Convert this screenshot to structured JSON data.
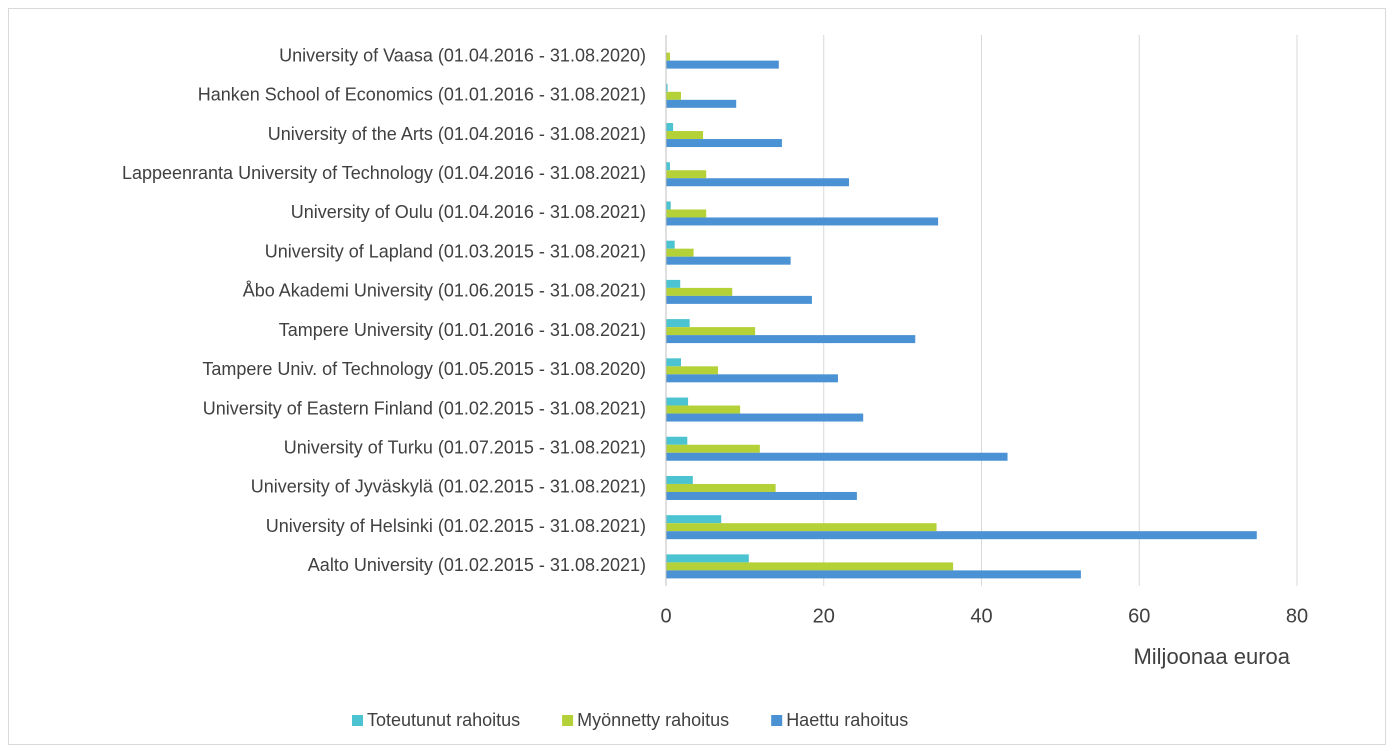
{
  "chart_data": {
    "type": "bar",
    "orientation": "horizontal",
    "x_label": "Miljoonaa euroa",
    "categories": [
      "University of Vaasa (01.04.2016 - 31.08.2020)",
      "Hanken School of Economics (01.01.2016 - 31.08.2021)",
      "University of the Arts (01.04.2016 - 31.08.2021)",
      "Lappeenranta University of Technology (01.04.2016 - 31.08.2021)",
      "University of Oulu (01.04.2016 - 31.08.2021)",
      "University of Lapland (01.03.2015 - 31.08.2021)",
      "Åbo Akademi University (01.06.2015 - 31.08.2021)",
      "Tampere University (01.01.2016 - 31.08.2021)",
      "Tampere Univ. of Technology (01.05.2015 - 31.08.2020)",
      "University of Eastern Finland (01.02.2015 - 31.08.2021)",
      "University of Turku (01.07.2015 - 31.08.2021)",
      "University of Jyväskylä (01.02.2015 - 31.08.2021)",
      "University of Helsinki (01.02.2015 - 31.08.2021)",
      "Aalto University (01.02.2015 - 31.08.2021)"
    ],
    "series": [
      {
        "name": "Toteutunut rahoitus",
        "color": "#4bc3d0",
        "values": [
          0,
          0.2,
          0.9,
          0.5,
          0.6,
          1.1,
          1.8,
          3.0,
          1.9,
          2.8,
          2.7,
          3.4,
          7.0,
          10.5
        ]
      },
      {
        "name": "Myönnetty rahoitus",
        "color": "#b4d238",
        "values": [
          0.5,
          1.9,
          4.7,
          5.1,
          5.1,
          3.5,
          8.4,
          11.3,
          6.6,
          9.4,
          11.9,
          13.9,
          34.3,
          36.4
        ]
      },
      {
        "name": "Haettu rahoitus",
        "color": "#4a92d3",
        "values": [
          14.3,
          8.9,
          14.7,
          23.2,
          34.5,
          15.8,
          18.5,
          31.6,
          21.8,
          25.0,
          43.3,
          24.2,
          74.9,
          52.6
        ]
      }
    ],
    "xlim": [
      0,
      80
    ],
    "xticks": [
      0,
      20,
      40,
      60,
      80
    ],
    "grid": true,
    "legend": "bottom"
  }
}
